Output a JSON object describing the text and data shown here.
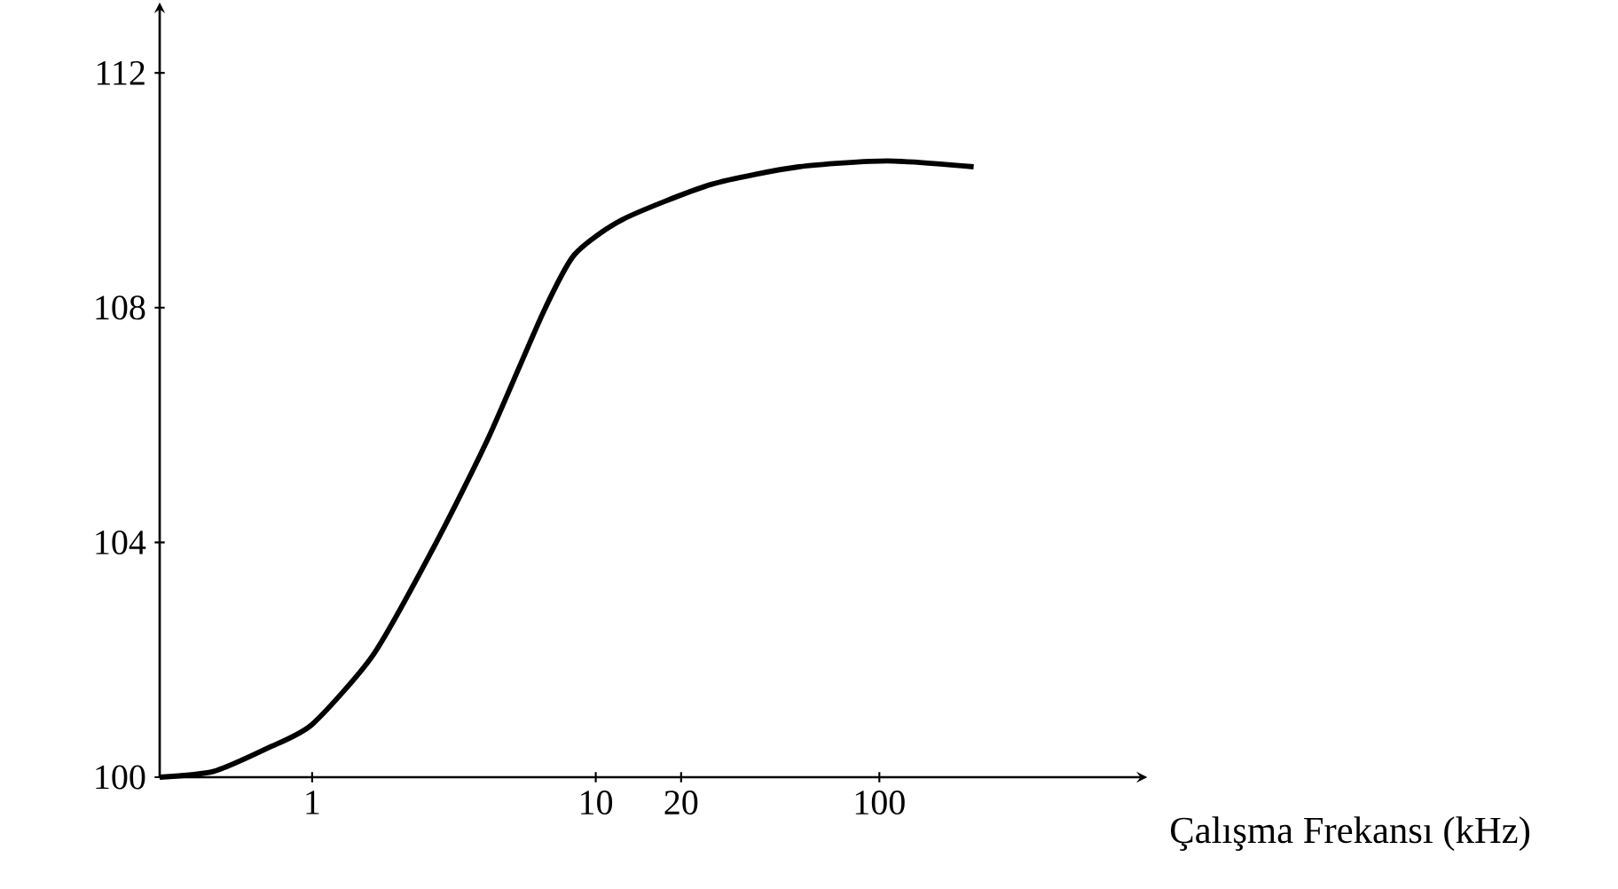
{
  "chart_data": {
    "type": "line",
    "xlabel": "Çalışma Frekansı (kHz)",
    "log": "x",
    "xlim": [
      0.29,
      800
    ],
    "ylim": [
      100,
      113
    ],
    "xticks": [
      1,
      10,
      20,
      100
    ],
    "yticks": [
      100,
      104,
      108,
      112
    ],
    "grid": false,
    "marker": "none",
    "line_style": "solid",
    "series": [
      {
        "color": "#000000",
        "x": [
          0.29,
          0.45,
          0.7,
          1,
          1.65,
          2.74,
          4.2,
          6.5,
          8.4,
          12.4,
          25.5,
          52,
          107,
          215
        ],
        "values": [
          100,
          100.1,
          100.5,
          100.9,
          102.1,
          104,
          105.8,
          107.9,
          108.9,
          109.5,
          110.1,
          110.4,
          110.5,
          110.4
        ]
      }
    ]
  }
}
